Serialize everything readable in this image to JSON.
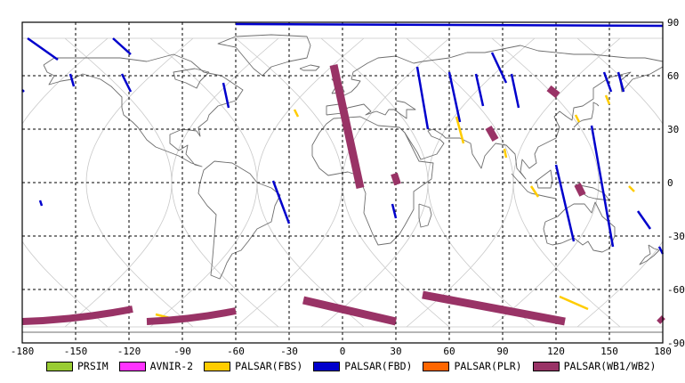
{
  "chart_data": {
    "type": "map",
    "title": "",
    "xlim": [
      -180,
      180
    ],
    "ylim": [
      -90,
      90
    ],
    "xticks": [
      "-180",
      "-150",
      "-120",
      "-90",
      "-60",
      "-30",
      "0",
      "30",
      "60",
      "90",
      "120",
      "150",
      "180"
    ],
    "yticks": [
      "90",
      "60",
      "30",
      "0",
      "-30",
      "-60",
      "-90"
    ],
    "grid": true,
    "legend_position": "bottom",
    "legend": [
      {
        "label": "PRSIM",
        "color": "#99cc33"
      },
      {
        "label": "AVNIR-2",
        "color": "#ff33ff"
      },
      {
        "label": "PALSAR(FBS)",
        "color": "#ffcc00"
      },
      {
        "label": "PALSAR(FBD)",
        "color": "#0000cc"
      },
      {
        "label": "PALSAR(PLR)",
        "color": "#ff6600"
      },
      {
        "label": "PALSAR(WB1/WB2)",
        "color": "#993366"
      }
    ],
    "swaths": [
      {
        "mode": "PALSAR(FBD)",
        "lon": [
          -177,
          -160
        ],
        "lat": [
          81,
          69
        ]
      },
      {
        "mode": "PALSAR(FBD)",
        "lon": [
          -180,
          -179
        ],
        "lat": [
          52,
          51
        ]
      },
      {
        "mode": "PALSAR(FBD)",
        "lon": [
          -153,
          -151
        ],
        "lat": [
          61,
          54
        ]
      },
      {
        "mode": "PALSAR(FBD)",
        "lon": [
          -129,
          -119
        ],
        "lat": [
          81,
          72
        ]
      },
      {
        "mode": "PALSAR(FBD)",
        "lon": [
          -124,
          -119
        ],
        "lat": [
          61,
          51
        ]
      },
      {
        "mode": "PALSAR(FBD)",
        "lon": [
          -67,
          -64
        ],
        "lat": [
          56,
          42
        ]
      },
      {
        "mode": "PALSAR(FBD)",
        "lon": [
          -39,
          -30
        ],
        "lat": [
          1,
          -23
        ]
      },
      {
        "mode": "PALSAR(FBD)",
        "lon": [
          -170,
          -169
        ],
        "lat": [
          -10,
          -13
        ]
      },
      {
        "mode": "PALSAR(FBD)",
        "lon": [
          -60,
          180
        ],
        "lat": [
          89,
          88
        ]
      },
      {
        "mode": "PALSAR(FBD)",
        "lon": [
          42,
          48
        ],
        "lat": [
          65,
          30
        ]
      },
      {
        "mode": "PALSAR(FBD)",
        "lon": [
          60,
          66
        ],
        "lat": [
          62,
          34
        ]
      },
      {
        "mode": "PALSAR(FBD)",
        "lon": [
          75,
          79
        ],
        "lat": [
          61,
          43
        ]
      },
      {
        "mode": "PALSAR(FBD)",
        "lon": [
          84,
          92
        ],
        "lat": [
          73,
          56
        ]
      },
      {
        "mode": "PALSAR(FBD)",
        "lon": [
          95,
          99
        ],
        "lat": [
          61,
          42
        ]
      },
      {
        "mode": "PALSAR(FBD)",
        "lon": [
          120,
          130
        ],
        "lat": [
          10,
          -33
        ]
      },
      {
        "mode": "PALSAR(FBD)",
        "lon": [
          140,
          152
        ],
        "lat": [
          32,
          -36
        ]
      },
      {
        "mode": "PALSAR(FBD)",
        "lon": [
          147,
          151
        ],
        "lat": [
          62,
          51
        ]
      },
      {
        "mode": "PALSAR(FBD)",
        "lon": [
          155,
          158
        ],
        "lat": [
          62,
          51
        ]
      },
      {
        "mode": "PALSAR(FBD)",
        "lon": [
          166,
          173
        ],
        "lat": [
          -16,
          -26
        ]
      },
      {
        "mode": "PALSAR(FBD)",
        "lon": [
          178,
          180
        ],
        "lat": [
          -36,
          -40
        ]
      },
      {
        "mode": "PALSAR(FBD)",
        "lon": [
          28,
          30
        ],
        "lat": [
          -12,
          -20
        ]
      },
      {
        "mode": "PALSAR(FBS)",
        "lon": [
          64,
          68
        ],
        "lat": [
          37,
          22
        ]
      },
      {
        "mode": "PALSAR(FBS)",
        "lon": [
          -27,
          -25
        ],
        "lat": [
          41,
          37
        ]
      },
      {
        "mode": "PALSAR(FBS)",
        "lon": [
          -105,
          -97
        ],
        "lat": [
          -74,
          -76
        ]
      },
      {
        "mode": "PALSAR(FBS)",
        "lon": [
          122,
          138
        ],
        "lat": [
          -64,
          -71
        ]
      },
      {
        "mode": "PALSAR(FBS)",
        "lon": [
          91,
          92
        ],
        "lat": [
          19,
          14
        ]
      },
      {
        "mode": "PALSAR(FBS)",
        "lon": [
          106,
          110
        ],
        "lat": [
          -2,
          -8
        ]
      },
      {
        "mode": "PALSAR(FBS)",
        "lon": [
          131,
          133
        ],
        "lat": [
          38,
          34
        ]
      },
      {
        "mode": "PALSAR(FBS)",
        "lon": [
          148,
          150
        ],
        "lat": [
          49,
          44
        ]
      },
      {
        "mode": "PALSAR(FBS)",
        "lon": [
          161,
          164
        ],
        "lat": [
          -2,
          -5
        ]
      },
      {
        "mode": "PALSAR(WB1/WB2)",
        "lon": [
          -5,
          10
        ],
        "lat": [
          66,
          -3
        ]
      },
      {
        "mode": "PALSAR(WB1/WB2)",
        "lon": [
          29,
          31
        ],
        "lat": [
          5,
          -1
        ]
      },
      {
        "mode": "PALSAR(WB1/WB2)",
        "lon": [
          82,
          86
        ],
        "lat": [
          31,
          24
        ]
      },
      {
        "mode": "PALSAR(WB1/WB2)",
        "lon": [
          116,
          121
        ],
        "lat": [
          53,
          49
        ]
      },
      {
        "mode": "PALSAR(WB1/WB2)",
        "lon": [
          132,
          135
        ],
        "lat": [
          -1,
          -7
        ]
      },
      {
        "mode": "PALSAR(WB1/WB2)",
        "lon": [
          -180,
          -118
        ],
        "lat": [
          -71,
          -78
        ]
      },
      {
        "mode": "PALSAR(WB1/WB2)",
        "lon": [
          -110,
          -60
        ],
        "lat": [
          -72,
          -78
        ]
      },
      {
        "mode": "PALSAR(WB1/WB2)",
        "lon": [
          -22,
          30
        ],
        "lat": [
          -66,
          -78
        ]
      },
      {
        "mode": "PALSAR(WB1/WB2)",
        "lon": [
          45,
          125
        ],
        "lat": [
          -63,
          -78
        ]
      },
      {
        "mode": "PALSAR(WB1/WB2)",
        "lon": [
          178,
          180
        ],
        "lat": [
          -76,
          -78
        ]
      }
    ]
  }
}
